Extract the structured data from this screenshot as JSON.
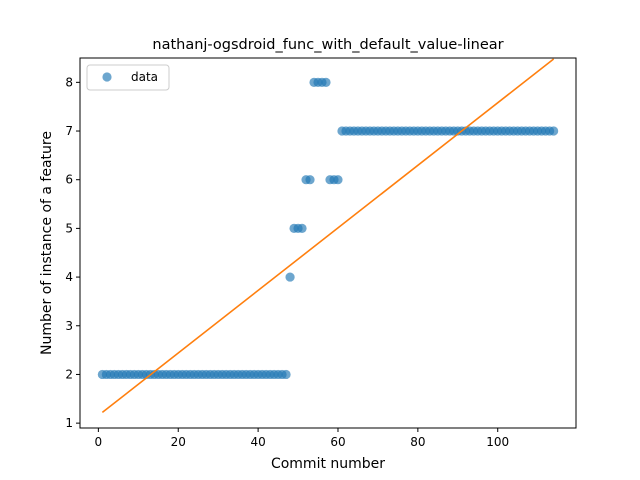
{
  "chart_data": {
    "type": "scatter",
    "title": "nathanj-ogsdroid_func_with_default_value-linear",
    "xlabel": "Commit number",
    "ylabel": "Number of instance of a feature",
    "xlim": [
      -4.6,
      119.6
    ],
    "ylim": [
      0.9,
      8.5
    ],
    "xticks": [
      0,
      20,
      40,
      60,
      80,
      100
    ],
    "yticks": [
      1,
      2,
      3,
      4,
      5,
      6,
      7,
      8
    ],
    "xtick_labels": [
      "0",
      "20",
      "40",
      "60",
      "80",
      "100"
    ],
    "ytick_labels": [
      "1",
      "2",
      "3",
      "4",
      "5",
      "6",
      "7",
      "8"
    ],
    "grid": false,
    "legend": {
      "position": "upper-left",
      "entries": [
        "data"
      ]
    },
    "colors": {
      "data": "#1f77b4",
      "fit": "#ff7f0e"
    },
    "series": [
      {
        "name": "data",
        "kind": "scatter",
        "x": [
          1,
          2,
          3,
          4,
          5,
          6,
          7,
          8,
          9,
          10,
          11,
          12,
          13,
          14,
          15,
          16,
          17,
          18,
          19,
          20,
          21,
          22,
          23,
          24,
          25,
          26,
          27,
          28,
          29,
          30,
          31,
          32,
          33,
          34,
          35,
          36,
          37,
          38,
          39,
          40,
          41,
          42,
          43,
          44,
          45,
          46,
          47,
          48,
          49,
          50,
          51,
          52,
          53,
          54,
          55,
          56,
          57,
          58,
          59,
          60,
          61,
          62,
          63,
          64,
          65,
          66,
          67,
          68,
          69,
          70,
          71,
          72,
          73,
          74,
          75,
          76,
          77,
          78,
          79,
          80,
          81,
          82,
          83,
          84,
          85,
          86,
          87,
          88,
          89,
          90,
          91,
          92,
          93,
          94,
          95,
          96,
          97,
          98,
          99,
          100,
          101,
          102,
          103,
          104,
          105,
          106,
          107,
          108,
          109,
          110,
          111,
          112,
          113,
          114
        ],
        "y": [
          2,
          2,
          2,
          2,
          2,
          2,
          2,
          2,
          2,
          2,
          2,
          2,
          2,
          2,
          2,
          2,
          2,
          2,
          2,
          2,
          2,
          2,
          2,
          2,
          2,
          2,
          2,
          2,
          2,
          2,
          2,
          2,
          2,
          2,
          2,
          2,
          2,
          2,
          2,
          2,
          2,
          2,
          2,
          2,
          2,
          2,
          2,
          4,
          5,
          5,
          5,
          6,
          6,
          8,
          8,
          8,
          8,
          6,
          6,
          6,
          7,
          7,
          7,
          7,
          7,
          7,
          7,
          7,
          7,
          7,
          7,
          7,
          7,
          7,
          7,
          7,
          7,
          7,
          7,
          7,
          7,
          7,
          7,
          7,
          7,
          7,
          7,
          7,
          7,
          7,
          7,
          7,
          7,
          7,
          7,
          7,
          7,
          7,
          7,
          7,
          7,
          7,
          7,
          7,
          7,
          7,
          7,
          7,
          7,
          7,
          7,
          7,
          7,
          7
        ]
      },
      {
        "kind": "line",
        "x": [
          1,
          114
        ],
        "y": [
          1.22,
          8.48
        ]
      }
    ]
  }
}
